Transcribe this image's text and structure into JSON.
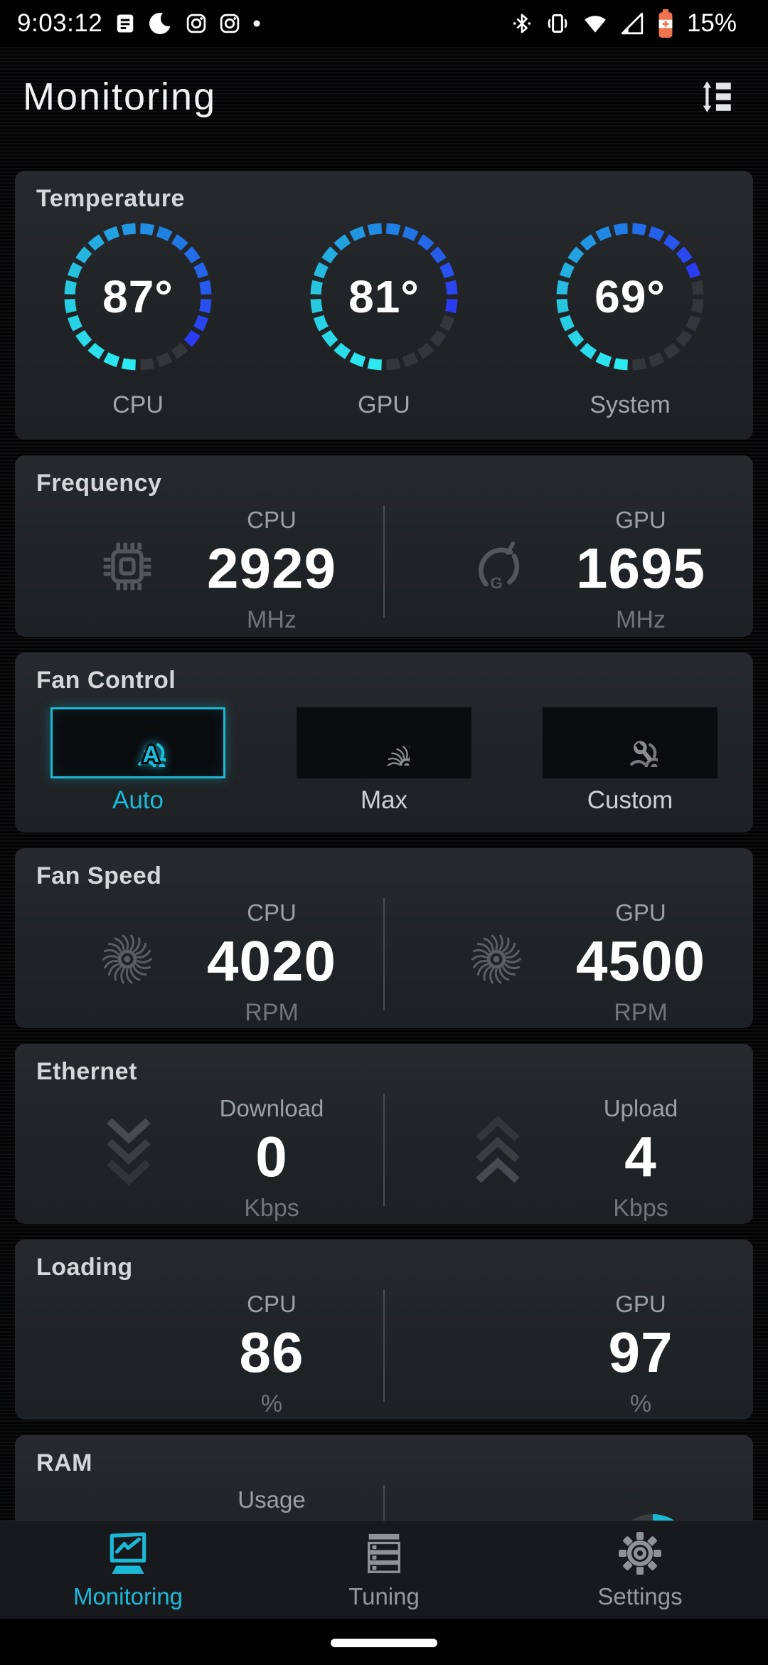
{
  "status_bar": {
    "time": "9:03:12",
    "battery_percent": "15%"
  },
  "header": {
    "title": "Monitoring"
  },
  "temperature": {
    "title": "Temperature",
    "max": 100,
    "gauges": [
      {
        "label": "CPU",
        "value": 87,
        "display": "87°"
      },
      {
        "label": "GPU",
        "value": 81,
        "display": "81°"
      },
      {
        "label": "System",
        "value": 69,
        "display": "69°"
      }
    ]
  },
  "frequency": {
    "title": "Frequency",
    "cpu": {
      "label": "CPU",
      "value": "2929",
      "unit": "MHz"
    },
    "gpu": {
      "label": "GPU",
      "value": "1695",
      "unit": "MHz"
    }
  },
  "fan_control": {
    "title": "Fan Control",
    "selected": "Auto",
    "options": [
      {
        "label": "Auto"
      },
      {
        "label": "Max"
      },
      {
        "label": "Custom"
      }
    ]
  },
  "fan_speed": {
    "title": "Fan Speed",
    "cpu": {
      "label": "CPU",
      "value": "4020",
      "unit": "RPM"
    },
    "gpu": {
      "label": "GPU",
      "value": "4500",
      "unit": "RPM"
    }
  },
  "ethernet": {
    "title": "Ethernet",
    "download": {
      "label": "Download",
      "value": "0",
      "unit": "Kbps"
    },
    "upload": {
      "label": "Upload",
      "value": "4",
      "unit": "Kbps"
    }
  },
  "loading": {
    "title": "Loading",
    "cpu": {
      "label": "CPU",
      "value": "86",
      "unit": "%"
    },
    "gpu": {
      "label": "GPU",
      "value": "97",
      "unit": "%"
    }
  },
  "ram": {
    "title": "RAM",
    "usage_label": "Usage"
  },
  "nav": {
    "items": [
      {
        "label": "Monitoring",
        "active": true
      },
      {
        "label": "Tuning",
        "active": false
      },
      {
        "label": "Settings",
        "active": false
      }
    ]
  },
  "colors": {
    "accent": "#1CB9D6",
    "gauge_start": "#2BEAF2",
    "gauge_end": "#2B3BF2",
    "gauge_empty": "#33373B",
    "battery_warning": "#F1744F"
  }
}
